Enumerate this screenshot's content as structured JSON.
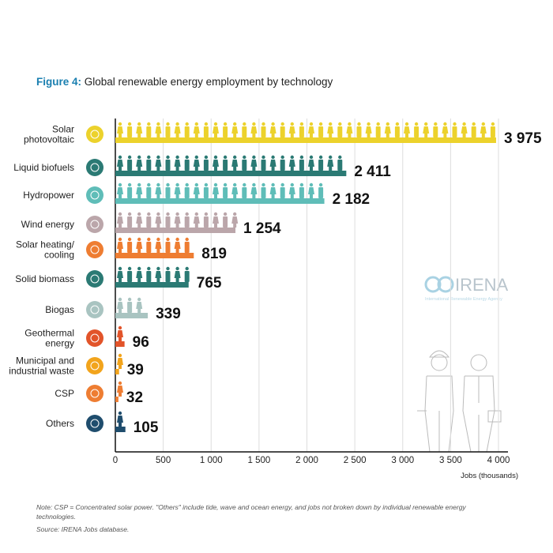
{
  "title_prefix": "Figure 4:",
  "title": "Global renewable energy employment by technology",
  "note": "Note: CSP = Concentrated solar power. \"Others\" include tide, wave and ocean energy, and jobs not broken down by individual renewable energy technologies.",
  "source": "Source: IRENA Jobs database.",
  "logo": {
    "name": "IRENA",
    "tagline": "International Renewable Energy Agency"
  },
  "chart_data": {
    "type": "bar",
    "orientation": "horizontal",
    "title": "Global renewable energy employment by technology",
    "xlabel": "Jobs (thousands)",
    "xlim": [
      0,
      4000
    ],
    "xticks": [
      0,
      500,
      1000,
      1500,
      2000,
      2500,
      3000,
      3500,
      4000
    ],
    "xtick_labels": [
      "0",
      "500",
      "1 000",
      "1 500",
      "2 000",
      "2 500",
      "3 000",
      "3 500",
      "4 000"
    ],
    "grid": true,
    "categories": [
      {
        "label": [
          "Solar",
          "photovoltaic"
        ],
        "value": 3975,
        "value_label": "3 975",
        "color": "#ecd22c",
        "icon": "sun-icon"
      },
      {
        "label": [
          "Liquid biofuels"
        ],
        "value": 2411,
        "value_label": "2 411",
        "color": "#2b7a74",
        "icon": "leaf-icon"
      },
      {
        "label": [
          "Hydropower"
        ],
        "value": 2182,
        "value_label": "2 182",
        "color": "#5fbdb8",
        "icon": "water-drop-icon"
      },
      {
        "label": [
          "Wind energy"
        ],
        "value": 1254,
        "value_label": "1 254",
        "color": "#bba6aa",
        "icon": "wind-turbine-icon"
      },
      {
        "label": [
          "Solar heating/",
          "cooling"
        ],
        "value": 819,
        "value_label": "819",
        "color": "#ee7d32",
        "icon": "sun-icon"
      },
      {
        "label": [
          "Solid biomass"
        ],
        "value": 765,
        "value_label": "765",
        "color": "#2b7a74",
        "icon": "leaf-icon"
      },
      {
        "label": [
          "Biogas"
        ],
        "value": 339,
        "value_label": "339",
        "color": "#a9c4c1",
        "icon": "leaf-icon"
      },
      {
        "label": [
          "Geothermal",
          "energy"
        ],
        "value": 96,
        "value_label": "96",
        "color": "#e2542a",
        "icon": "volcano-icon"
      },
      {
        "label": [
          "Municipal and",
          "industrial waste"
        ],
        "value": 39,
        "value_label": "39",
        "color": "#f2a41c",
        "icon": "bin-icon"
      },
      {
        "label": [
          "CSP"
        ],
        "value": 32,
        "value_label": "32",
        "color": "#ee7d32",
        "icon": "sun-icon"
      },
      {
        "label": [
          "Others"
        ],
        "value": 105,
        "value_label": "105",
        "color": "#1f4d6d",
        "icon": "plug-icon"
      }
    ]
  }
}
